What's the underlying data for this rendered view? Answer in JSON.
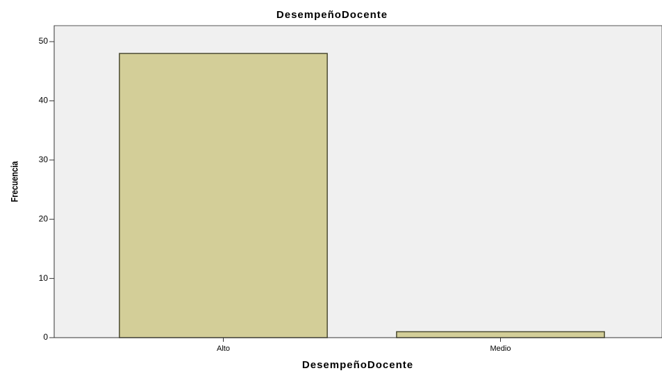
{
  "chart_data": {
    "type": "bar",
    "title": "DesempeñoDocente",
    "x_label": "DesempeñoDocente",
    "y_label": "Frecuencia",
    "categories": [
      "Alto",
      "Medio"
    ],
    "values": [
      48,
      1
    ],
    "color": "#d3ce98",
    "ylim": [
      0,
      52.7
    ],
    "yticks": [
      0,
      10,
      20,
      30,
      40,
      50
    ]
  }
}
